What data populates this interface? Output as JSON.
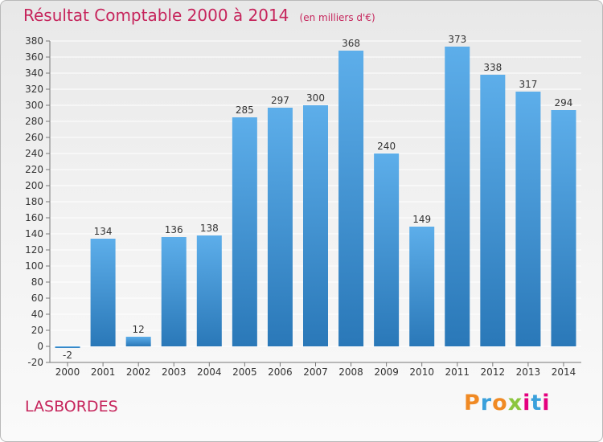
{
  "header": {
    "title": "Résultat Comptable 2000 à 2014",
    "subtitle": "(en milliers d'€)"
  },
  "footer": {
    "commune": "LASBORDES",
    "logo_text": "Proxiti"
  },
  "colors": {
    "bar_top": "#5daeea",
    "bar_bottom": "#2a78b8",
    "title": "#c6255c",
    "grid": "#ffffff"
  },
  "chart_data": {
    "type": "bar",
    "title": "Résultat Comptable 2000 à 2014",
    "subtitle": "(en milliers d'€)",
    "xlabel": "",
    "ylabel": "",
    "categories": [
      "2000",
      "2001",
      "2002",
      "2003",
      "2004",
      "2005",
      "2006",
      "2007",
      "2008",
      "2009",
      "2010",
      "2011",
      "2012",
      "2013",
      "2014"
    ],
    "values": [
      -2,
      134,
      12,
      136,
      138,
      285,
      297,
      300,
      368,
      240,
      149,
      373,
      338,
      317,
      294
    ],
    "data_labels": [
      "-2",
      "134",
      "12",
      "136",
      "138",
      "285",
      "297",
      "300",
      "368",
      "240",
      "149",
      "373",
      "338",
      "317",
      "294"
    ],
    "ylim": [
      -20,
      380
    ],
    "yticks": [
      -20,
      0,
      20,
      40,
      60,
      80,
      100,
      120,
      140,
      160,
      180,
      200,
      220,
      240,
      260,
      280,
      300,
      320,
      340,
      360,
      380
    ],
    "ytick_labels": [
      "-20",
      "0",
      "20",
      "40",
      "60",
      "80",
      "100",
      "120",
      "140",
      "160",
      "180",
      "200",
      "220",
      "240",
      "260",
      "280",
      "300",
      "320",
      "340",
      "360",
      "380"
    ],
    "grid": true,
    "legend": "none"
  }
}
